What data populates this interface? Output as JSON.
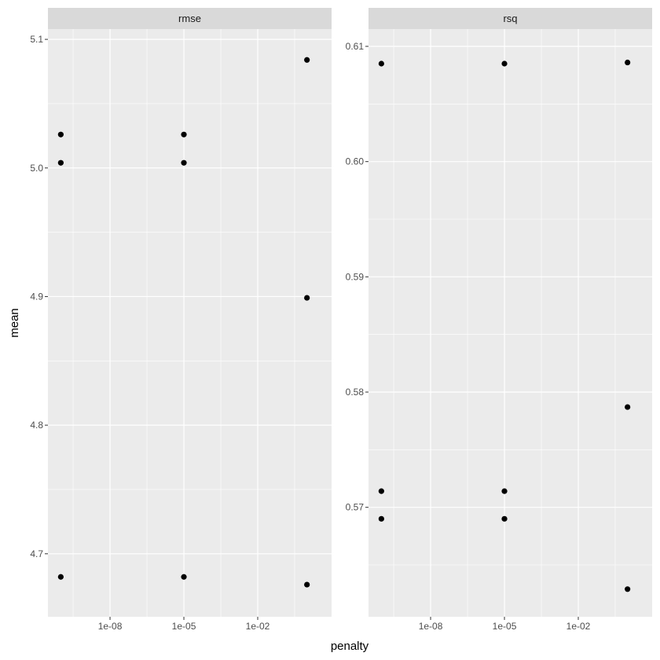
{
  "chart_data": {
    "type": "scatter",
    "xlabel": "penalty",
    "ylabel": "mean",
    "x_scale": "log10",
    "x_ticks": [
      {
        "value": 1e-08,
        "label": "1e-08"
      },
      {
        "value": 1e-05,
        "label": "1e-05"
      },
      {
        "value": 0.01,
        "label": "1e-02"
      }
    ],
    "xlim": [
      3e-11,
      10
    ],
    "grid": true,
    "panels": [
      {
        "strip": "rmse",
        "ylim": [
          4.651,
          5.108
        ],
        "y_ticks": [
          {
            "value": 4.7,
            "label": "4.7"
          },
          {
            "value": 4.8,
            "label": "4.8"
          },
          {
            "value": 4.9,
            "label": "4.9"
          },
          {
            "value": 5.0,
            "label": "5.0"
          },
          {
            "value": 5.1,
            "label": "5.1"
          }
        ],
        "points": [
          {
            "x": 1e-10,
            "y": 5.026
          },
          {
            "x": 1e-10,
            "y": 5.004
          },
          {
            "x": 1e-10,
            "y": 4.682
          },
          {
            "x": 1e-05,
            "y": 5.026
          },
          {
            "x": 1e-05,
            "y": 5.004
          },
          {
            "x": 1e-05,
            "y": 4.682
          },
          {
            "x": 1,
            "y": 5.084
          },
          {
            "x": 1,
            "y": 4.899
          },
          {
            "x": 1,
            "y": 4.676
          }
        ]
      },
      {
        "strip": "rsq",
        "ylim": [
          0.5605,
          0.6115
        ],
        "y_ticks": [
          {
            "value": 0.57,
            "label": "0.57"
          },
          {
            "value": 0.58,
            "label": "0.58"
          },
          {
            "value": 0.59,
            "label": "0.59"
          },
          {
            "value": 0.6,
            "label": "0.60"
          },
          {
            "value": 0.61,
            "label": "0.61"
          }
        ],
        "points": [
          {
            "x": 1e-10,
            "y": 0.6085
          },
          {
            "x": 1e-10,
            "y": 0.5714
          },
          {
            "x": 1e-10,
            "y": 0.569
          },
          {
            "x": 1e-05,
            "y": 0.6085
          },
          {
            "x": 1e-05,
            "y": 0.5714
          },
          {
            "x": 1e-05,
            "y": 0.569
          },
          {
            "x": 1,
            "y": 0.6086
          },
          {
            "x": 1,
            "y": 0.5787
          },
          {
            "x": 1,
            "y": 0.5629
          }
        ]
      }
    ]
  }
}
